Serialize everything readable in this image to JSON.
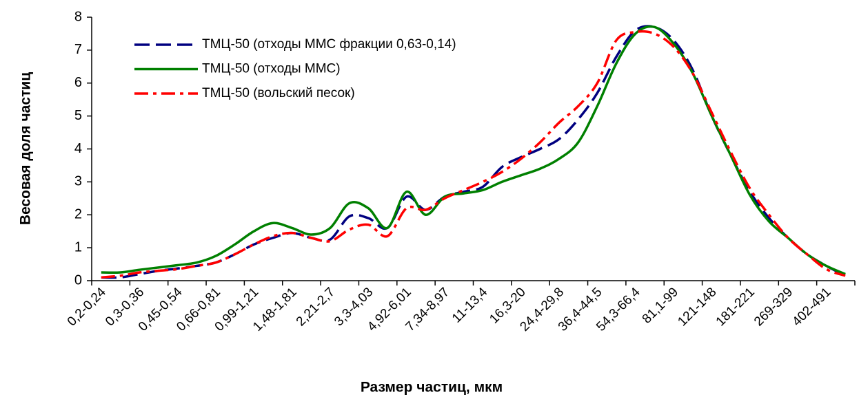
{
  "chart_data": {
    "type": "line",
    "x_label": "Размер частиц, мкм",
    "y_label": "Весовая доля частиц",
    "categories": [
      "0,2-0,24",
      null,
      "0,3-0,36",
      null,
      "0,45-0,54",
      null,
      "0,66-0,81",
      null,
      "0,99-1,21",
      null,
      "1,48-1,81",
      null,
      "2,21-2,7",
      null,
      "3,3-4,03",
      null,
      "4,92-6,01",
      null,
      "7,34-8,97",
      null,
      "11-13,4",
      null,
      "16,3-20",
      null,
      "24,4-29,8",
      null,
      "36,4-44,5",
      null,
      "54,3-66,4",
      null,
      "81,1-99",
      null,
      "121-148",
      null,
      "181-221",
      null,
      "269-329",
      null,
      "402-491",
      null
    ],
    "series": [
      {
        "name": "ТМЦ-50 (отходы ММС фракции 0,63-0,14)",
        "color": "#000080",
        "dash": "dashed",
        "values": [
          0.1,
          0.1,
          0.2,
          0.3,
          0.37,
          0.45,
          0.55,
          0.8,
          1.1,
          1.3,
          1.45,
          1.3,
          1.25,
          1.95,
          1.9,
          1.6,
          2.55,
          2.15,
          2.55,
          2.7,
          2.85,
          3.45,
          3.75,
          4.0,
          4.3,
          4.9,
          5.7,
          6.8,
          7.6,
          7.7,
          7.3,
          6.4,
          5.0,
          3.8,
          2.7,
          1.9,
          1.3,
          0.8,
          0.45,
          0.15
        ]
      },
      {
        "name": "ТМЦ-50 (отходы ММС)",
        "color": "#008000",
        "dash": "solid",
        "values": [
          0.25,
          0.25,
          0.33,
          0.4,
          0.47,
          0.55,
          0.75,
          1.1,
          1.5,
          1.75,
          1.6,
          1.4,
          1.6,
          2.35,
          2.2,
          1.6,
          2.7,
          2.0,
          2.55,
          2.65,
          2.75,
          3.0,
          3.2,
          3.4,
          3.7,
          4.2,
          5.3,
          6.6,
          7.5,
          7.7,
          7.2,
          6.3,
          5.0,
          3.8,
          2.6,
          1.8,
          1.3,
          0.8,
          0.45,
          0.2
        ]
      },
      {
        "name": "ТМЦ-50 (вольский песок)",
        "color": "#ff0000",
        "dash": "dashdot",
        "values": [
          0.1,
          0.15,
          0.25,
          0.3,
          0.35,
          0.45,
          0.55,
          0.8,
          1.1,
          1.35,
          1.45,
          1.3,
          1.2,
          1.55,
          1.7,
          1.35,
          2.2,
          2.15,
          2.5,
          2.75,
          3.0,
          3.3,
          3.7,
          4.2,
          4.8,
          5.3,
          6.0,
          7.3,
          7.55,
          7.5,
          7.1,
          6.3,
          5.1,
          3.9,
          2.8,
          2.0,
          1.3,
          0.8,
          0.35,
          0.15
        ]
      }
    ],
    "ylim": [
      0,
      8
    ],
    "yticks": [
      0,
      1,
      2,
      3,
      4,
      5,
      6,
      7,
      8
    ],
    "grid": false,
    "legend": "top-left"
  }
}
